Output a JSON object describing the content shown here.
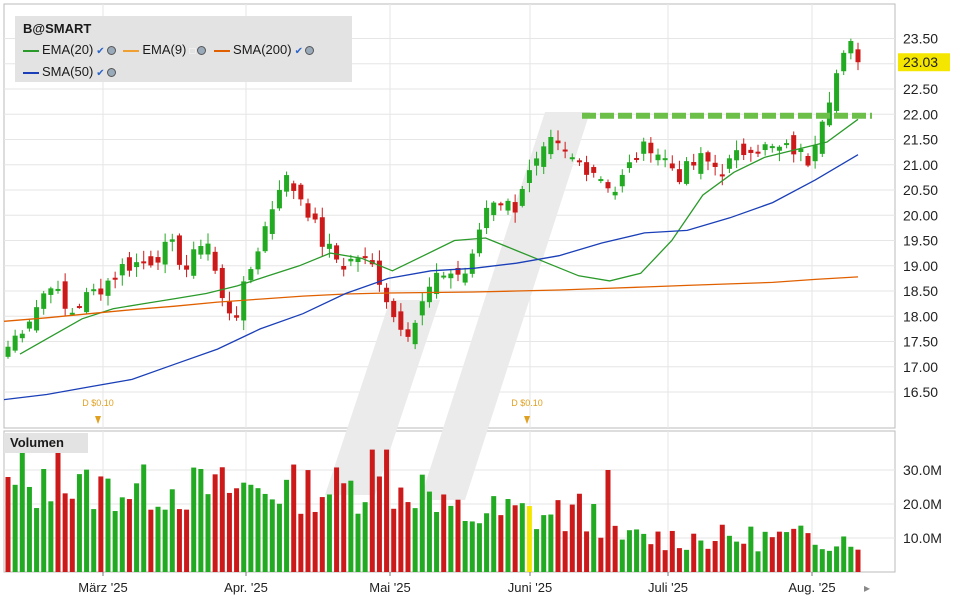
{
  "legend": {
    "ticker": "B@SMART",
    "items": [
      {
        "label": "EMA(20)",
        "color": "#2a9a2a"
      },
      {
        "label": "EMA(9)",
        "color": "#f0a030"
      },
      {
        "label": "SMA(200)",
        "color": "#e06000"
      },
      {
        "label": "SMA(50)",
        "color": "#1a3fb8"
      }
    ]
  },
  "volume_label": "Volumen",
  "chart_data": [
    {
      "type": "candlestick",
      "title": "B@SMART",
      "x_labels": [
        "März '25",
        "Apr. '25",
        "Mai '25",
        "Juni '25",
        "Juli '25",
        "Aug. '25"
      ],
      "y_ticks": [
        "16.50",
        "17.00",
        "17.50",
        "18.00",
        "18.50",
        "19.00",
        "19.50",
        "20.00",
        "20.50",
        "21.00",
        "21.50",
        "22.00",
        "22.50",
        "23.00",
        "23.50"
      ],
      "ylim": [
        16.1,
        23.8
      ],
      "last_price": "23.03",
      "resistance_level": 21.97,
      "dividend_markers": [
        "D $0.10",
        "D $0.10"
      ],
      "colors": {
        "up": "#22aa22",
        "down": "#cc1a1a",
        "resistance": "#6cc04a",
        "price_badge": "#f5e600"
      },
      "series": [
        {
          "name": "EMA(20)",
          "values": [
            17.25,
            17.6,
            17.95,
            18.15,
            18.25,
            18.35,
            18.45,
            18.6,
            18.8,
            19.0,
            19.25,
            19.15,
            18.9,
            19.2,
            19.5,
            19.55,
            19.3,
            19.05,
            18.8,
            18.7,
            18.85,
            19.5,
            20.4,
            20.85,
            21.15,
            21.3,
            21.45,
            21.9
          ]
        },
        {
          "name": "EMA(9)",
          "values": []
        },
        {
          "name": "SMA(200)",
          "values": [
            17.9,
            17.97,
            18.05,
            18.13,
            18.2,
            18.28,
            18.34,
            18.4,
            18.44,
            18.46,
            18.47,
            18.48,
            18.5,
            18.52,
            18.55,
            18.58,
            18.61,
            18.64,
            18.67,
            18.73,
            18.78
          ]
        },
        {
          "name": "SMA(50)",
          "values": [
            16.35,
            16.45,
            16.6,
            16.75,
            17.05,
            17.35,
            17.75,
            18.05,
            18.45,
            18.75,
            18.9,
            18.95,
            19.05,
            19.2,
            19.45,
            19.65,
            19.7,
            19.95,
            20.25,
            20.7,
            21.2
          ]
        }
      ]
    },
    {
      "type": "bar",
      "title": "Volumen",
      "y_ticks": [
        "10.0M",
        "20.0M",
        "30.0M"
      ],
      "ylim": [
        0,
        38
      ],
      "unit": "M"
    }
  ]
}
